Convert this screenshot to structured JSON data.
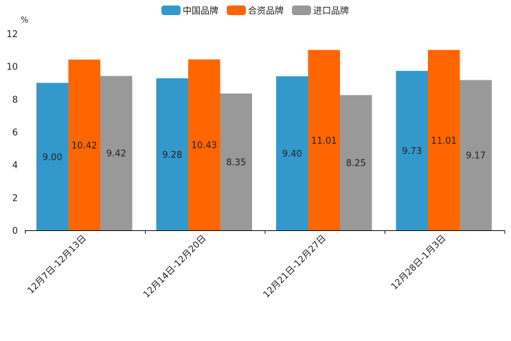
{
  "chart_data": {
    "type": "bar",
    "title": "",
    "xlabel": "",
    "ylabel": "%",
    "ylim": [
      0,
      12
    ],
    "yticks": [
      0,
      2,
      4,
      6,
      8,
      10,
      12
    ],
    "grid": false,
    "legend_position": "top-center",
    "categories": [
      "12月7日-12月13日",
      "12月14日-12月20日",
      "12月21日-12月27日",
      "12月28日-1月3日"
    ],
    "series": [
      {
        "name": "中国品牌",
        "color": "#3399CC",
        "values": [
          9.0,
          9.28,
          9.4,
          9.73
        ],
        "labels": [
          "9.00",
          "9.28",
          "9.40",
          "9.73"
        ]
      },
      {
        "name": "合资品牌",
        "color": "#FF6600",
        "values": [
          10.42,
          10.43,
          11.01,
          11.01
        ],
        "labels": [
          "10.42",
          "10.43",
          "11.01",
          "11.01"
        ]
      },
      {
        "name": "进口品牌",
        "color": "#999999",
        "values": [
          9.42,
          8.35,
          8.25,
          9.17
        ],
        "labels": [
          "9.42",
          "8.35",
          "8.25",
          "9.17"
        ]
      }
    ]
  }
}
